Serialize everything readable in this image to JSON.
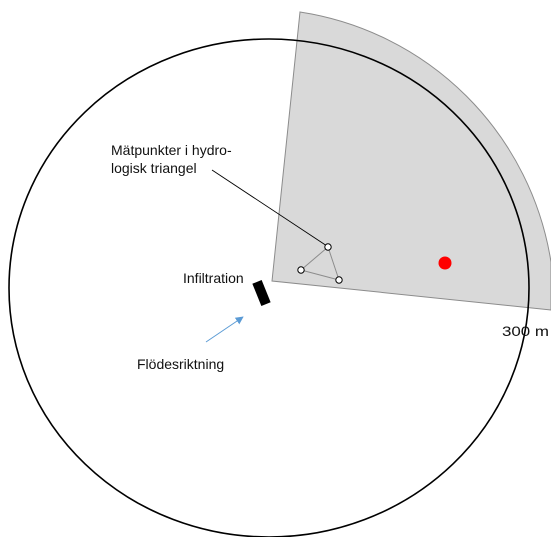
{
  "labels": {
    "measurement_points_line1": "Mätpunkter i hydro-",
    "measurement_points_line2": "logisk triangel",
    "infiltration": "Infiltration",
    "flow_direction": "Flödesriktning",
    "radius": "300 m"
  },
  "colors": {
    "sector_fill": "#d9d9d9",
    "sector_stroke": "#8c8c8c",
    "circle_stroke": "#000000",
    "well_marker": "#ff0000",
    "flow_arrow": "#5b9bd5",
    "infiltration_block": "#000000",
    "triangle_lines": "#8c8c8c",
    "point_fill": "#ffffff"
  }
}
